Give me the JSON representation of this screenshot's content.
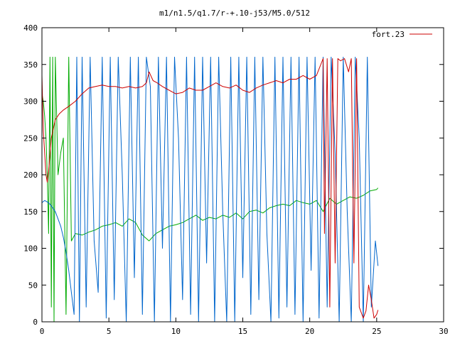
{
  "chart_data": {
    "type": "line",
    "title": "m1/n1.5/q1.7/r-+.10-j53/M5.0/512",
    "xlabel": "",
    "ylabel": "",
    "xlim": [
      0,
      30
    ],
    "ylim": [
      0,
      400
    ],
    "xticks": [
      0,
      5,
      10,
      15,
      20,
      25,
      30
    ],
    "yticks": [
      0,
      50,
      100,
      150,
      200,
      250,
      300,
      350,
      400
    ],
    "xtick_labels": [
      "0",
      "5",
      "10",
      "15",
      "20",
      "25",
      "30"
    ],
    "ytick_labels": [
      "0",
      "50",
      "100",
      "150",
      "200",
      "250",
      "300",
      "350",
      "400"
    ],
    "grid": false,
    "legend_position": "top-right",
    "series": [
      {
        "name": "fort.23",
        "color": "#cc0000",
        "x": [
          0,
          0.1,
          0.2,
          0.3,
          0.4,
          0.5,
          0.7,
          1.0,
          1.3,
          1.6,
          2.0,
          2.5,
          3.0,
          3.5,
          4.0,
          4.5,
          5.0,
          5.5,
          6.0,
          6.5,
          7.0,
          7.5,
          7.8,
          8.0,
          8.3,
          8.6,
          9.0,
          9.5,
          10.0,
          10.5,
          11.0,
          11.5,
          12.0,
          12.5,
          13.0,
          13.5,
          14.0,
          14.5,
          15.0,
          15.5,
          16.0,
          16.5,
          17.0,
          17.5,
          18.0,
          18.5,
          19.0,
          19.5,
          20.0,
          20.5,
          21.0,
          21.1,
          21.3,
          21.5,
          21.7,
          21.9,
          22.1,
          22.3,
          22.6,
          22.9,
          23.1,
          23.3,
          23.5,
          23.7,
          24.0,
          24.2,
          24.4,
          24.6,
          24.8,
          25.0,
          25.1
        ],
        "y": [
          335,
          260,
          230,
          200,
          190,
          205,
          250,
          275,
          283,
          288,
          293,
          300,
          310,
          318,
          320,
          322,
          320,
          320,
          318,
          320,
          318,
          320,
          325,
          340,
          328,
          325,
          320,
          315,
          310,
          312,
          318,
          315,
          315,
          320,
          325,
          320,
          318,
          322,
          315,
          312,
          318,
          322,
          325,
          328,
          325,
          330,
          330,
          335,
          330,
          335,
          358,
          120,
          358,
          20,
          358,
          80,
          358,
          355,
          358,
          340,
          358,
          80,
          358,
          20,
          5,
          15,
          50,
          30,
          5,
          10,
          16
        ]
      },
      {
        "name": "",
        "color": "#00aa00",
        "x": [
          0,
          0.1,
          0.2,
          0.3,
          0.4,
          0.5,
          0.6,
          0.7,
          0.8,
          0.9,
          1.0,
          1.2,
          1.4,
          1.6,
          1.8,
          2.0,
          2.2,
          2.5,
          3.0,
          3.5,
          4.0,
          4.5,
          5.0,
          5.5,
          6.0,
          6.5,
          7.0,
          7.5,
          8.0,
          8.5,
          9.0,
          9.5,
          10.0,
          10.5,
          11.0,
          11.5,
          12.0,
          12.5,
          13.0,
          13.5,
          14.0,
          14.5,
          15.0,
          15.5,
          16.0,
          16.5,
          17.0,
          17.5,
          18.0,
          18.5,
          19.0,
          19.5,
          20.0,
          20.5,
          21.0,
          21.5,
          22.0,
          22.5,
          23.0,
          23.5,
          24.0,
          24.5,
          25.0,
          25.1
        ],
        "y": [
          310,
          300,
          280,
          250,
          200,
          120,
          360,
          20,
          360,
          0,
          360,
          200,
          230,
          250,
          10,
          360,
          110,
          120,
          118,
          122,
          125,
          130,
          132,
          135,
          130,
          140,
          135,
          118,
          110,
          120,
          125,
          130,
          132,
          135,
          140,
          145,
          138,
          142,
          140,
          145,
          142,
          148,
          140,
          150,
          152,
          148,
          155,
          158,
          160,
          158,
          165,
          162,
          160,
          165,
          150,
          168,
          160,
          165,
          170,
          168,
          172,
          178,
          180,
          182
        ]
      },
      {
        "name": "",
        "color": "#0066cc",
        "x": [
          0,
          0.2,
          0.4,
          0.6,
          0.8,
          1.0,
          1.2,
          1.4,
          1.6,
          1.8,
          2.0,
          2.2,
          2.4,
          2.6,
          2.8,
          3.0,
          3.3,
          3.6,
          3.9,
          4.2,
          4.5,
          4.8,
          5.1,
          5.4,
          5.7,
          6.0,
          6.3,
          6.6,
          6.9,
          7.2,
          7.5,
          7.8,
          8.1,
          8.4,
          8.7,
          9.0,
          9.3,
          9.6,
          9.9,
          10.2,
          10.5,
          10.8,
          11.1,
          11.4,
          11.7,
          12.0,
          12.3,
          12.6,
          12.9,
          13.2,
          13.5,
          13.8,
          14.1,
          14.4,
          14.7,
          15.0,
          15.3,
          15.6,
          15.9,
          16.2,
          16.5,
          16.8,
          17.1,
          17.4,
          17.7,
          18.0,
          18.3,
          18.6,
          18.9,
          19.2,
          19.5,
          19.8,
          20.1,
          20.4,
          20.7,
          21.0,
          21.3,
          21.6,
          21.9,
          22.2,
          22.5,
          22.8,
          23.1,
          23.4,
          23.7,
          24.0,
          24.3,
          24.6,
          24.9,
          25.1
        ],
        "y": [
          162,
          165,
          163,
          160,
          155,
          150,
          140,
          130,
          115,
          95,
          70,
          40,
          10,
          360,
          0,
          360,
          20,
          360,
          110,
          40,
          360,
          5,
          360,
          30,
          360,
          200,
          0,
          360,
          60,
          360,
          10,
          360,
          320,
          0,
          360,
          100,
          360,
          0,
          360,
          250,
          30,
          360,
          10,
          360,
          0,
          360,
          80,
          360,
          0,
          360,
          150,
          0,
          360,
          0,
          360,
          60,
          360,
          10,
          360,
          30,
          360,
          120,
          0,
          360,
          5,
          360,
          20,
          360,
          10,
          360,
          0,
          360,
          70,
          360,
          5,
          360,
          20,
          360,
          230,
          0,
          360,
          150,
          0,
          360,
          250,
          0,
          360,
          20,
          110,
          76
        ]
      }
    ]
  }
}
